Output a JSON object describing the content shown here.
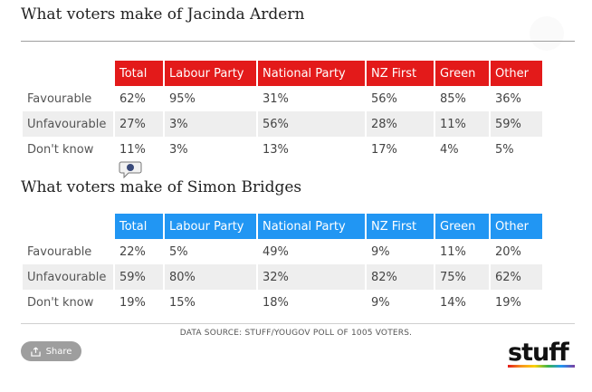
{
  "section1": {
    "title": "What voters make of Jacinda Ardern",
    "headers": [
      "Total",
      "Labour Party",
      "National Party",
      "NZ First",
      "Green",
      "Other"
    ],
    "header_color": "#e31a1a",
    "rows": [
      {
        "label": "Favourable",
        "values": [
          "62%",
          "95%",
          "31%",
          "56%",
          "85%",
          "36%"
        ]
      },
      {
        "label": "Unfavourable",
        "values": [
          "27%",
          "3%",
          "56%",
          "28%",
          "11%",
          "59%"
        ]
      },
      {
        "label": "Don't know",
        "values": [
          "11%",
          "3%",
          "13%",
          "17%",
          "4%",
          "5%"
        ]
      }
    ]
  },
  "section2": {
    "title": "What voters make of Simon Bridges",
    "headers": [
      "Total",
      "Labour Party",
      "National Party",
      "NZ First",
      "Green",
      "Other"
    ],
    "header_color": "#2196f3",
    "rows": [
      {
        "label": "Favourable",
        "values": [
          "22%",
          "5%",
          "49%",
          "9%",
          "11%",
          "20%"
        ]
      },
      {
        "label": "Unfavourable",
        "values": [
          "59%",
          "80%",
          "32%",
          "82%",
          "75%",
          "62%"
        ]
      },
      {
        "label": "Don't know",
        "values": [
          "19%",
          "15%",
          "18%",
          "9%",
          "14%",
          "19%"
        ]
      }
    ]
  },
  "footer": {
    "source": "DATA SOURCE: STUFF/YOUGOV POLL OF 1005 VOTERS.",
    "share_label": "Share",
    "logo_text": "stuff"
  },
  "icons": {
    "comment": "comment-icon",
    "share": "share-icon"
  }
}
